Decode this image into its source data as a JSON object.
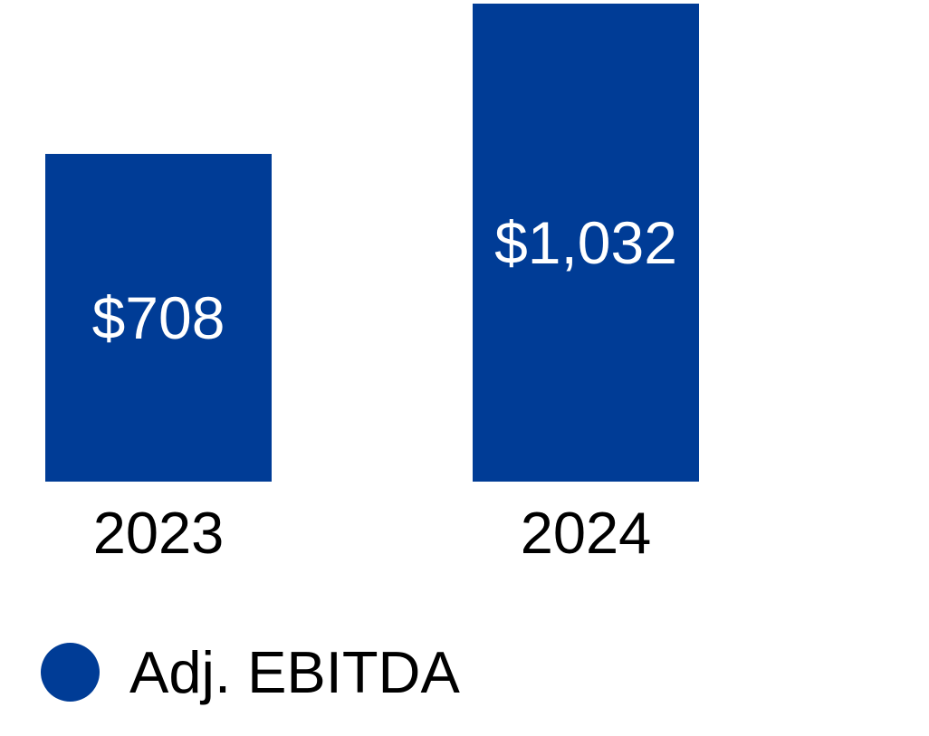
{
  "chart_data": {
    "type": "bar",
    "categories": [
      "2023",
      "2024"
    ],
    "series": [
      {
        "name": "Adj. EBITDA",
        "values": [
          708,
          1032
        ]
      }
    ],
    "value_labels": [
      "$708",
      "$1,032"
    ],
    "title": "",
    "xlabel": "",
    "ylabel": "",
    "ylim": [
      0,
      1032
    ],
    "grid": false,
    "axes_shown": false,
    "legend_position": "bottom-left",
    "bar_color": "#003C96",
    "value_label_color": "#FFFFFF",
    "category_label_color": "#000000",
    "background_color": "#FFFFFF"
  },
  "legend": {
    "marker_icon": "circle-icon",
    "label": "Adj. EBITDA",
    "marker_color": "#003C96"
  }
}
